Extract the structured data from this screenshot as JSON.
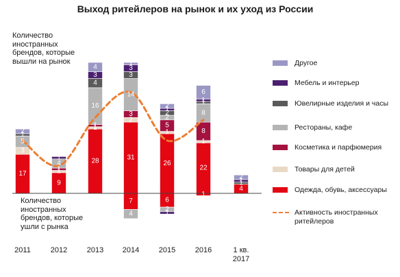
{
  "chart_data": {
    "type": "bar",
    "title": "Выход ритейлеров на рынок и их уход из России",
    "annotation_entered": "Количество иностранных брендов, которые вышли на рынок",
    "annotation_exited": "Количество иностранных брендов, которые ушли с рынка",
    "categories": [
      "2011",
      "2012",
      "2013",
      "2014",
      "2015",
      "2016",
      "1 кв. 2017"
    ],
    "series": [
      {
        "name": "Одежда, обувь, аксессуары",
        "color": "#e30613",
        "entered": [
          17,
          9,
          28,
          31,
          26,
          22,
          4
        ],
        "exited": [
          0,
          0,
          0,
          7,
          6,
          1,
          0
        ]
      },
      {
        "name": "Товары для детей",
        "color": "#e8d9c6",
        "entered": [
          3,
          1,
          1,
          2,
          1,
          1,
          0
        ],
        "exited": [
          0,
          0,
          0,
          0,
          0,
          0,
          0
        ]
      },
      {
        "name": "Косметика и парфюмерия",
        "color": "#a4123f",
        "entered": [
          0,
          1,
          1,
          3,
          5,
          8,
          0
        ],
        "exited": [
          0,
          0,
          0,
          0,
          0,
          0,
          0
        ]
      },
      {
        "name": "Рестораны, кафе",
        "color": "#b4b4b4",
        "entered": [
          5,
          4,
          16,
          14,
          2,
          8,
          0
        ],
        "exited": [
          0,
          0,
          0,
          4,
          2,
          0,
          0
        ]
      },
      {
        "name": "Ювелирные изделия и часы",
        "color": "#5a5a5a",
        "entered": [
          1,
          0,
          4,
          3,
          2,
          1,
          1
        ],
        "exited": [
          0,
          0,
          0,
          0,
          0,
          0,
          0
        ]
      },
      {
        "name": "Мебель и интерьер",
        "color": "#4b1f6f",
        "entered": [
          0,
          1,
          3,
          3,
          1,
          1,
          1
        ],
        "exited": [
          0,
          0,
          0,
          0,
          1,
          0,
          0
        ]
      },
      {
        "name": "Другое",
        "color": "#9b97c5",
        "entered": [
          2,
          0,
          4,
          1,
          2,
          6,
          2
        ],
        "exited": [
          0,
          0,
          0,
          0,
          0,
          0,
          0
        ]
      }
    ],
    "line": {
      "name": "Активность иностранных ритейлеров",
      "color": "#ed7d31",
      "values": [
        23,
        12,
        33,
        44,
        23,
        32,
        0
      ]
    },
    "ylim": [
      -12,
      61
    ],
    "grid": false,
    "legend_position": "right"
  }
}
